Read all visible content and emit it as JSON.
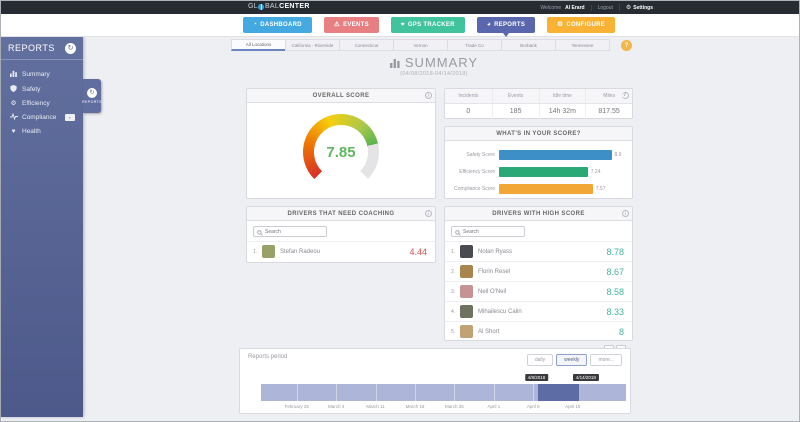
{
  "topbar": {
    "logo_gl": "GL",
    "logo_bal": "BAL",
    "logo_center": "CENTER",
    "welcome": "Welcome",
    "user": "Al Erard",
    "logout": "Logout",
    "settings": "Settings"
  },
  "nav": {
    "buttons": [
      {
        "label": "DASHBOARD",
        "color": "#43a9e0",
        "icon": "◔"
      },
      {
        "label": "EVENTS",
        "color": "#e87f82",
        "icon": "⚠"
      },
      {
        "label": "GPS TRACKER",
        "color": "#41c39e",
        "icon": "⌖"
      },
      {
        "label": "REPORTS",
        "color": "#5a67ae",
        "icon": "◕"
      },
      {
        "label": "CONFIGURE",
        "color": "#f9b233",
        "icon": "⚙"
      }
    ]
  },
  "sidebar": {
    "title": "REPORTS",
    "items": [
      {
        "label": "Summary"
      },
      {
        "label": "Safety"
      },
      {
        "label": "Efficiency"
      },
      {
        "label": "Compliance"
      },
      {
        "label": "Health"
      }
    ],
    "handle": "REPORTS"
  },
  "tabs": [
    {
      "label": "All Locations"
    },
    {
      "label": "California - Riverside"
    },
    {
      "label": "Connecticut"
    },
    {
      "label": "Vernon"
    },
    {
      "label": "Trade Co"
    },
    {
      "label": "Burbank"
    },
    {
      "label": "Tennessee"
    }
  ],
  "page": {
    "title": "SUMMARY",
    "date_range": "(04/08/2018-04/14/2018)"
  },
  "overall_score": {
    "title": "OVERALL SCORE",
    "value": "7.85"
  },
  "stats": {
    "headers": [
      "Incidents",
      "Events",
      "Idle time",
      "Miles"
    ],
    "values": [
      "0",
      "185",
      "14h 32m",
      "817.55"
    ]
  },
  "score_breakdown": {
    "title": "WHAT'S IN YOUR SCORE?",
    "bars": [
      {
        "label": "Safety Score",
        "value": "8.9",
        "color": "#3d8fc7",
        "width_pct": 90
      },
      {
        "label": "Efficiency Score",
        "value": "7.24",
        "color": "#2aa876",
        "width_pct": 71
      },
      {
        "label": "Compliance Score",
        "value": "7.57",
        "color": "#f2a636",
        "width_pct": 75
      }
    ]
  },
  "coaching": {
    "title": "DRIVERS THAT NEED COACHING",
    "search_placeholder": "Search",
    "rows": [
      {
        "rank": "1.",
        "name": "Stefan Radeou",
        "score": "4.44",
        "avatar_color": "#9aa06a"
      }
    ]
  },
  "high_score": {
    "title": "DRIVERS WITH HIGH SCORE",
    "search_placeholder": "Search",
    "rows": [
      {
        "rank": "1.",
        "name": "Nolan Ryass",
        "score": "8.78",
        "avatar_color": "#4a4a52"
      },
      {
        "rank": "2.",
        "name": "Florin Resel",
        "score": "8.67",
        "avatar_color": "#a8844f"
      },
      {
        "rank": "3.",
        "name": "Neil O'Neil",
        "score": "8.58",
        "avatar_color": "#c79292"
      },
      {
        "rank": "4.",
        "name": "Mihailescu Calin",
        "score": "8.33",
        "avatar_color": "#6e7361"
      },
      {
        "rank": "5.",
        "name": "Al Short",
        "score": "8",
        "avatar_color": "#c2a274"
      }
    ],
    "pagination": [
      "‹",
      "›"
    ]
  },
  "reports_period": {
    "label": "Reports period",
    "buttons": [
      {
        "label": "daily"
      },
      {
        "label": "weekly"
      },
      {
        "label": "more..."
      }
    ],
    "selection": {
      "left_pct": 75.8,
      "width_pct": 11.4
    },
    "tooltips": [
      {
        "text": "4/8/2018",
        "left_pct": 75.5
      },
      {
        "text": "4/14/2018",
        "left_pct": 89
      }
    ],
    "axis": [
      "February 26",
      "March 4",
      "March 11",
      "March 18",
      "March 25",
      "April 1",
      "April 8",
      "April 15"
    ]
  }
}
